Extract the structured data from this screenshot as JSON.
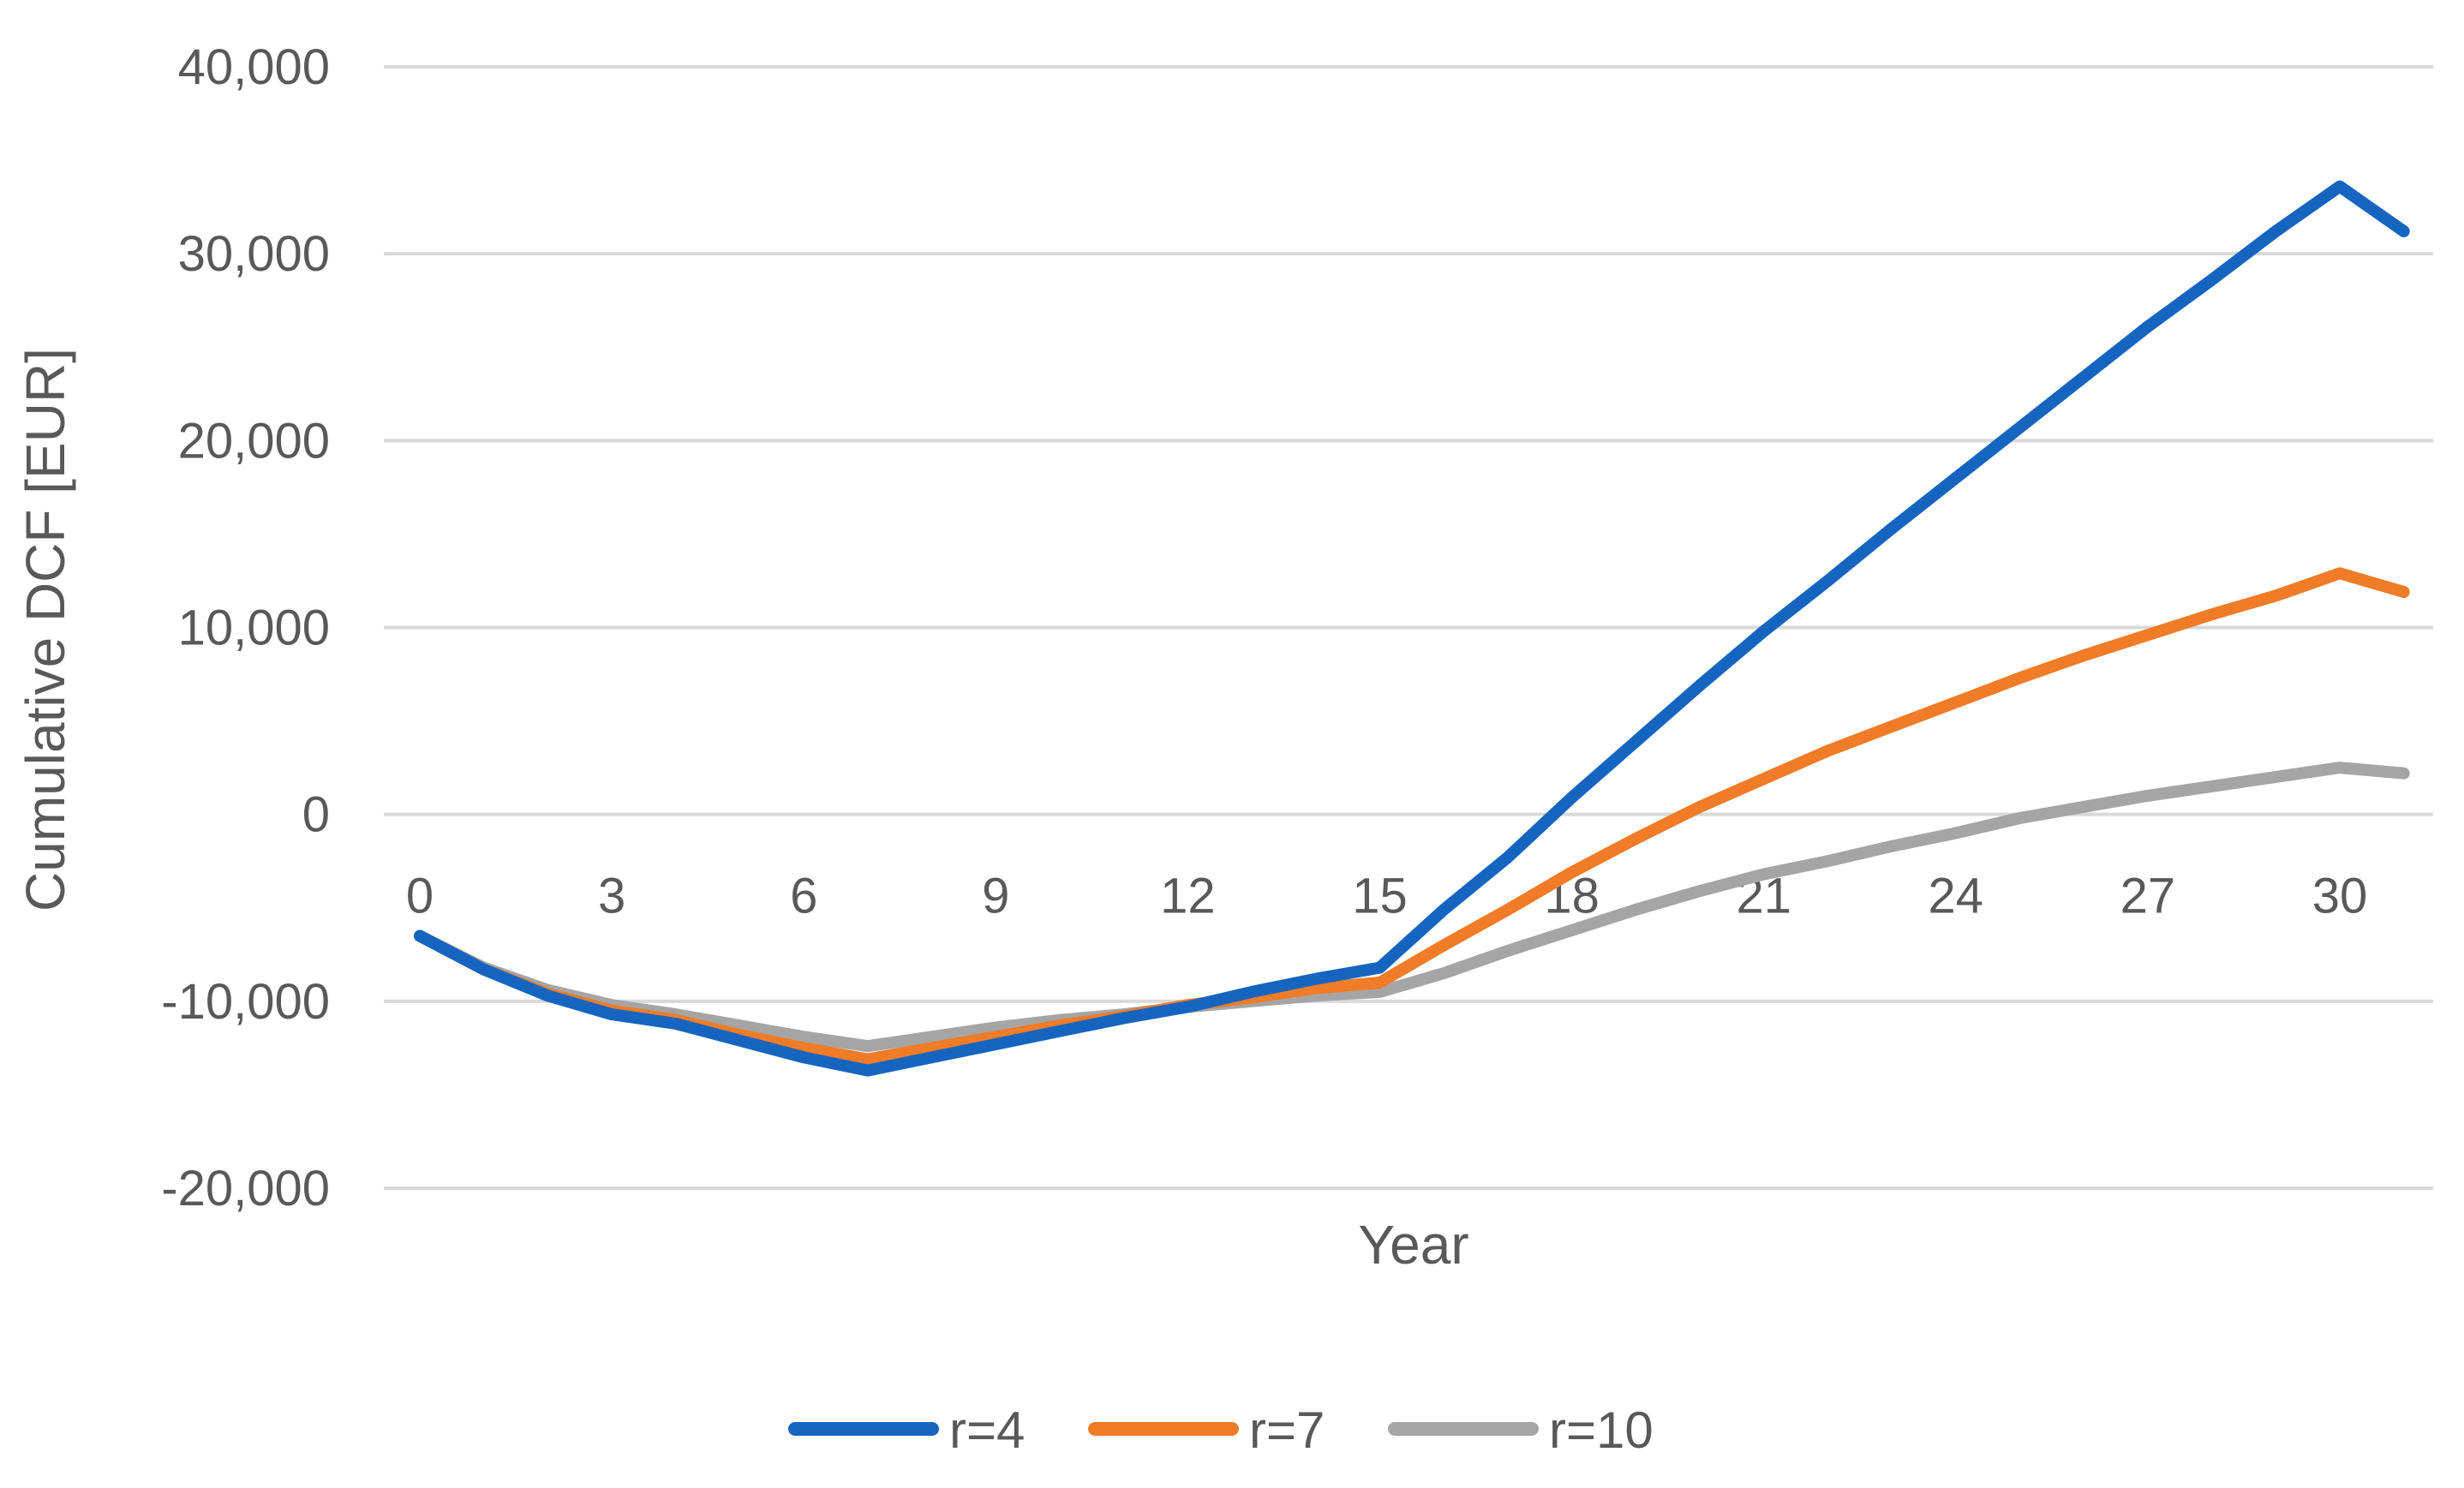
{
  "chart_data": {
    "type": "line",
    "title": "",
    "xlabel": "Year",
    "ylabel": "Cumulative DCF [EUR]",
    "ylim": [
      -20000,
      40000
    ],
    "yticks": [
      -20000,
      -10000,
      0,
      10000,
      20000,
      30000,
      40000
    ],
    "ytick_labels": [
      "-20,000",
      "-10,000",
      "0",
      "10,000",
      "20,000",
      "30,000",
      "40,000"
    ],
    "xticks": [
      0,
      3,
      6,
      9,
      12,
      15,
      18,
      21,
      24,
      27,
      30
    ],
    "xtick_labels": [
      "0",
      "3",
      "6",
      "9",
      "12",
      "15",
      "18",
      "21",
      "24",
      "27",
      "30"
    ],
    "xlim": [
      0,
      31
    ],
    "grid": true,
    "legend_position": "bottom",
    "x": [
      0,
      1,
      2,
      3,
      4,
      5,
      6,
      7,
      8,
      9,
      10,
      11,
      12,
      13,
      14,
      15,
      16,
      17,
      18,
      19,
      20,
      21,
      22,
      23,
      24,
      25,
      26,
      27,
      28,
      29,
      30,
      31
    ],
    "series": [
      {
        "name": "r=4",
        "color": "#1565C0",
        "values": [
          -6500,
          -8300,
          -9700,
          -10700,
          -11200,
          -12100,
          -13000,
          -13700,
          -13000,
          -12300,
          -11600,
          -10900,
          -10300,
          -9500,
          -8800,
          -8200,
          -5100,
          -2300,
          900,
          3900,
          6900,
          9800,
          12500,
          15300,
          18000,
          20700,
          23400,
          26100,
          28600,
          31200,
          33600,
          31200
        ]
      },
      {
        "name": "r=7",
        "color": "#F07C28",
        "values": [
          -6500,
          -8300,
          -9600,
          -10500,
          -11000,
          -11800,
          -12500,
          -13100,
          -12500,
          -11900,
          -11300,
          -10800,
          -10200,
          -9800,
          -9300,
          -9000,
          -7000,
          -5100,
          -3100,
          -1300,
          400,
          1900,
          3400,
          4700,
          6000,
          7300,
          8500,
          9600,
          10700,
          11700,
          12900,
          11900
        ]
      },
      {
        "name": "r=10",
        "color": "#A5A5A5",
        "values": [
          -6500,
          -8200,
          -9400,
          -10200,
          -10700,
          -11300,
          -11900,
          -12400,
          -11900,
          -11400,
          -11000,
          -10700,
          -10300,
          -10000,
          -9700,
          -9500,
          -8500,
          -7300,
          -6200,
          -5100,
          -4100,
          -3200,
          -2500,
          -1700,
          -1000,
          -200,
          400,
          1000,
          1500,
          2000,
          2500,
          2200
        ]
      }
    ]
  }
}
